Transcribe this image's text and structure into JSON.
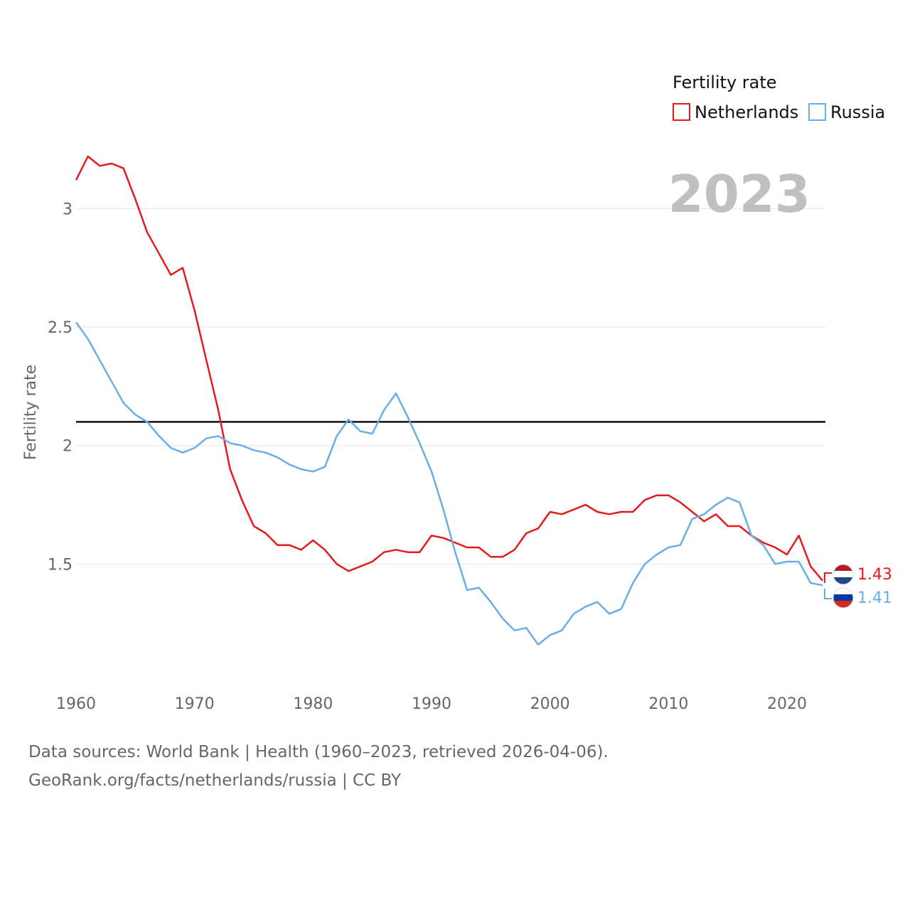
{
  "chart_data": {
    "type": "line",
    "year_display": "2023",
    "legend_title": "Fertility rate",
    "ylabel": "Fertility rate",
    "xlabel": "",
    "xlim": [
      1960,
      2023
    ],
    "ylim": [
      1.0,
      3.4
    ],
    "y_ticks": [
      1.5,
      2.0,
      2.5,
      3.0
    ],
    "y_tick_labels": [
      "1.5",
      "2",
      "2.5",
      "3"
    ],
    "x_ticks": [
      1960,
      1970,
      1980,
      1990,
      2000,
      2010,
      2020
    ],
    "x_tick_labels": [
      "1960",
      "1970",
      "1980",
      "1990",
      "2000",
      "2010",
      "2020"
    ],
    "reference_line": {
      "value": 2.1,
      "color": "#111111"
    },
    "x": [
      1960,
      1961,
      1962,
      1963,
      1964,
      1965,
      1966,
      1967,
      1968,
      1969,
      1970,
      1971,
      1972,
      1973,
      1974,
      1975,
      1976,
      1977,
      1978,
      1979,
      1980,
      1981,
      1982,
      1983,
      1984,
      1985,
      1986,
      1987,
      1988,
      1989,
      1990,
      1991,
      1992,
      1993,
      1994,
      1995,
      1996,
      1997,
      1998,
      1999,
      2000,
      2001,
      2002,
      2003,
      2004,
      2005,
      2006,
      2007,
      2008,
      2009,
      2010,
      2011,
      2012,
      2013,
      2014,
      2015,
      2016,
      2017,
      2018,
      2019,
      2020,
      2021,
      2022,
      2023
    ],
    "series": [
      {
        "name": "Netherlands",
        "color": "#e41a1c",
        "end_label": "1.43",
        "values": [
          3.12,
          3.22,
          3.18,
          3.19,
          3.17,
          3.04,
          2.9,
          2.81,
          2.72,
          2.75,
          2.57,
          2.36,
          2.15,
          1.9,
          1.77,
          1.66,
          1.63,
          1.58,
          1.58,
          1.56,
          1.6,
          1.56,
          1.5,
          1.47,
          1.49,
          1.51,
          1.55,
          1.56,
          1.55,
          1.55,
          1.62,
          1.61,
          1.59,
          1.57,
          1.57,
          1.53,
          1.53,
          1.56,
          1.63,
          1.65,
          1.72,
          1.71,
          1.73,
          1.75,
          1.72,
          1.71,
          1.72,
          1.72,
          1.77,
          1.79,
          1.79,
          1.76,
          1.72,
          1.68,
          1.71,
          1.66,
          1.66,
          1.62,
          1.59,
          1.57,
          1.54,
          1.62,
          1.49,
          1.43
        ]
      },
      {
        "name": "Russia",
        "color": "#6aaee8",
        "end_label": "1.41",
        "values": [
          2.52,
          2.45,
          2.36,
          2.27,
          2.18,
          2.13,
          2.1,
          2.04,
          1.99,
          1.97,
          1.99,
          2.03,
          2.04,
          2.01,
          2.0,
          1.98,
          1.97,
          1.95,
          1.92,
          1.9,
          1.89,
          1.91,
          2.04,
          2.11,
          2.06,
          2.05,
          2.15,
          2.22,
          2.12,
          2.01,
          1.89,
          1.73,
          1.55,
          1.39,
          1.4,
          1.34,
          1.27,
          1.22,
          1.23,
          1.16,
          1.2,
          1.22,
          1.29,
          1.32,
          1.34,
          1.29,
          1.31,
          1.42,
          1.5,
          1.54,
          1.57,
          1.58,
          1.69,
          1.71,
          1.75,
          1.78,
          1.76,
          1.62,
          1.58,
          1.5,
          1.51,
          1.51,
          1.42,
          1.41
        ]
      }
    ]
  },
  "footer": {
    "line1": "Data sources: World Bank | Health (1960–2023, retrieved 2026-04-06).",
    "line2": "GeoRank.org/facts/netherlands/russia | CC BY"
  }
}
